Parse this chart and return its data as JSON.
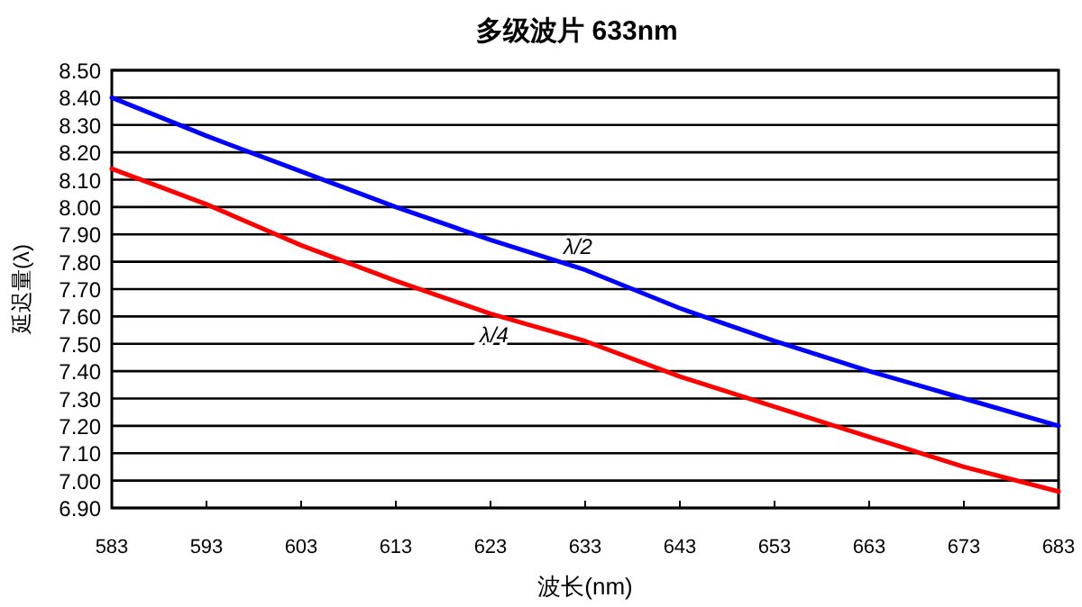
{
  "chart_data": {
    "type": "line",
    "title": "多级波片 633nm",
    "xlabel": "波长(nm)",
    "ylabel": "延迟量(λ)",
    "x": [
      583,
      593,
      603,
      613,
      623,
      633,
      643,
      653,
      663,
      673,
      683
    ],
    "series": [
      {
        "name": "λ/2",
        "color": "#0000ff",
        "values": [
          8.4,
          8.26,
          8.13,
          8.0,
          7.88,
          7.77,
          7.63,
          7.51,
          7.4,
          7.3,
          7.2
        ]
      },
      {
        "name": "λ/4",
        "color": "#ff0000",
        "values": [
          8.14,
          8.01,
          7.86,
          7.73,
          7.61,
          7.51,
          7.38,
          7.27,
          7.16,
          7.05,
          6.96
        ]
      }
    ],
    "xlim": [
      583,
      683
    ],
    "xticks": [
      583,
      593,
      603,
      613,
      623,
      633,
      643,
      653,
      663,
      673,
      683
    ],
    "ylim": [
      6.9,
      8.5
    ],
    "yticks": [
      {
        "value": 6.9,
        "label": "6.90"
      },
      {
        "value": 7.0,
        "label": "7.00"
      },
      {
        "value": 7.1,
        "label": "7.10"
      },
      {
        "value": 7.2,
        "label": "7.20"
      },
      {
        "value": 7.3,
        "label": "7.30"
      },
      {
        "value": 7.4,
        "label": "7.40"
      },
      {
        "value": 7.5,
        "label": "7.50"
      },
      {
        "value": 7.6,
        "label": "7.60"
      },
      {
        "value": 7.7,
        "label": "7.70"
      },
      {
        "value": 7.8,
        "label": "7.80"
      },
      {
        "value": 7.9,
        "label": "7.90"
      },
      {
        "value": 8.0,
        "label": "8.00"
      },
      {
        "value": 8.1,
        "label": "8.10"
      },
      {
        "value": 8.2,
        "label": "8.20"
      },
      {
        "value": 8.3,
        "label": "8.30"
      },
      {
        "value": 8.4,
        "label": "8.40"
      },
      {
        "value": 8.5,
        "label": "8.50"
      }
    ],
    "grid": "y",
    "marker": "none",
    "line_style": "solid"
  }
}
